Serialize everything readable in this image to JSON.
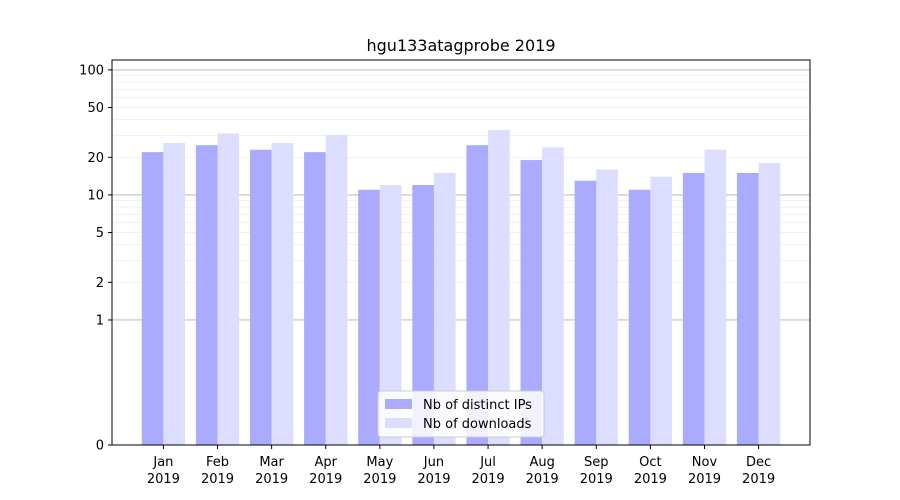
{
  "chart_data": {
    "type": "bar",
    "title": "hgu133atagprobe 2019",
    "xlabel": "",
    "ylabel": "",
    "y_scale": "symlog",
    "ylim": [
      0,
      120
    ],
    "yticks": [
      0,
      1,
      2,
      5,
      10,
      20,
      50,
      100
    ],
    "grid": true,
    "legend_position": "bottom-center",
    "categories": [
      [
        "Jan",
        "2019"
      ],
      [
        "Feb",
        "2019"
      ],
      [
        "Mar",
        "2019"
      ],
      [
        "Apr",
        "2019"
      ],
      [
        "May",
        "2019"
      ],
      [
        "Jun",
        "2019"
      ],
      [
        "Jul",
        "2019"
      ],
      [
        "Aug",
        "2019"
      ],
      [
        "Sep",
        "2019"
      ],
      [
        "Oct",
        "2019"
      ],
      [
        "Nov",
        "2019"
      ],
      [
        "Dec",
        "2019"
      ]
    ],
    "series": [
      {
        "name": "Nb of distinct IPs",
        "color": "#aaaaff",
        "values": [
          22,
          25,
          23,
          22,
          11,
          12,
          25,
          19,
          13,
          11,
          15,
          15
        ]
      },
      {
        "name": "Nb of downloads",
        "color": "#ddddff",
        "values": [
          26,
          31,
          26,
          30,
          12,
          15,
          33,
          24,
          16,
          14,
          23,
          18
        ]
      }
    ]
  }
}
